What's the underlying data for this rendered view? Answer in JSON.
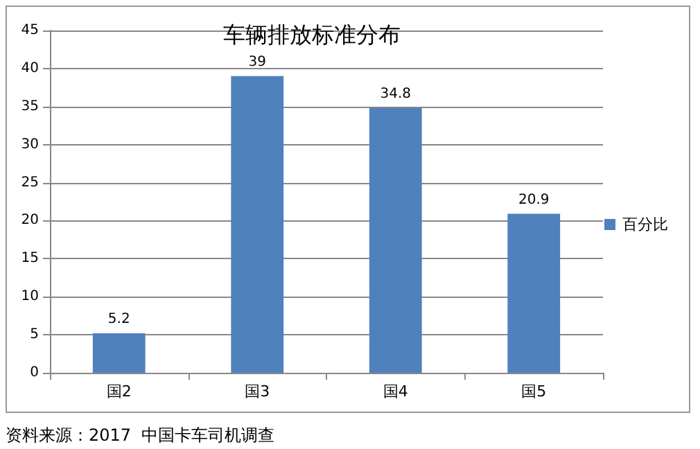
{
  "chart_data": {
    "type": "bar",
    "title": "车辆排放标准分布",
    "categories": [
      "国2",
      "国3",
      "国4",
      "国5"
    ],
    "series": [
      {
        "name": "百分比",
        "color": "#4f81bd",
        "values": [
          5.2,
          39,
          34.8,
          20.9
        ]
      }
    ],
    "ylim": [
      0,
      45
    ],
    "yticks": [
      0,
      5,
      10,
      15,
      20,
      25,
      30,
      35,
      40,
      45
    ],
    "grid": "y",
    "legend": "right",
    "data_labels": true,
    "annotations": [
      "资料来源：2017  中国卡车司机调查"
    ]
  }
}
